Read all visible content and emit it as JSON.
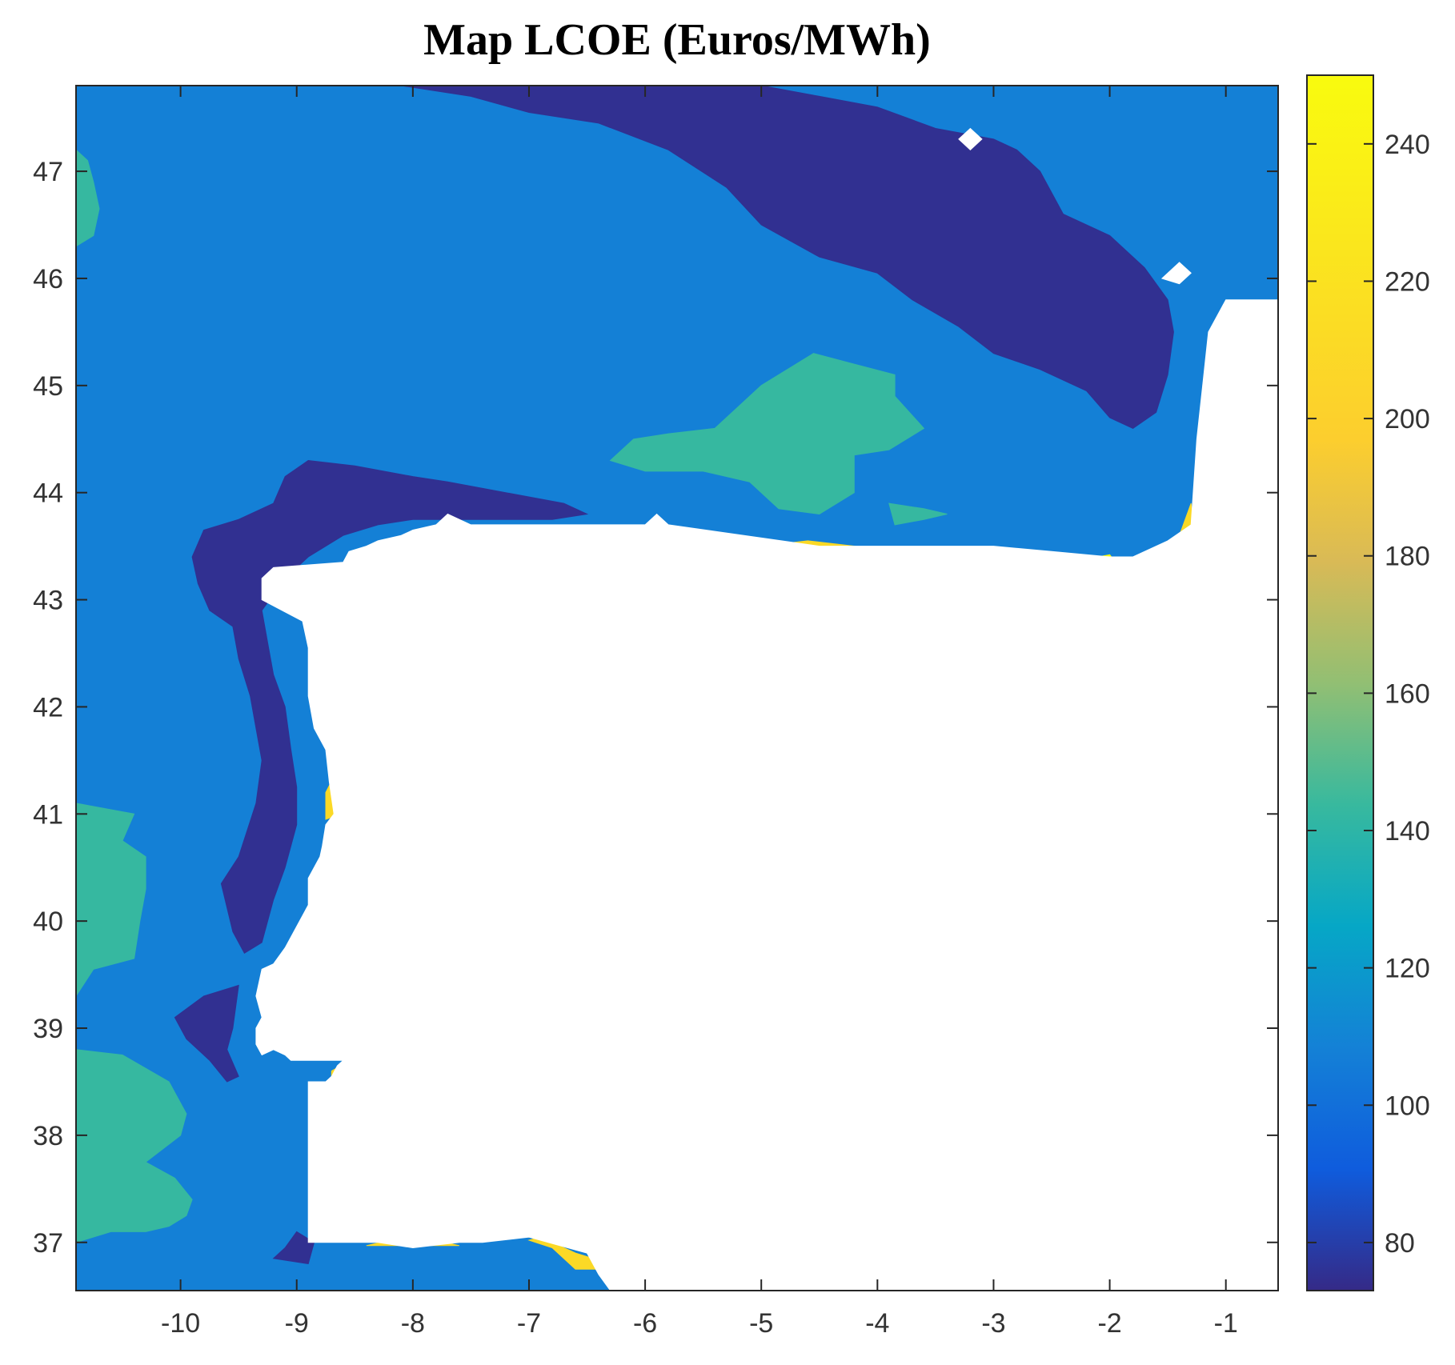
{
  "chart_data": {
    "type": "heatmap",
    "title": "Map LCOE (Euros/MWh)",
    "xlabel": "",
    "ylabel": "",
    "xlim": [
      -10.9,
      -0.55
    ],
    "ylim": [
      36.55,
      47.8
    ],
    "xticks": [
      -10,
      -9,
      -8,
      -7,
      -6,
      -5,
      -4,
      -3,
      -2,
      -1
    ],
    "yticks": [
      37,
      38,
      39,
      40,
      41,
      42,
      43,
      44,
      45,
      46,
      47
    ],
    "colorbar": {
      "range": [
        73,
        250
      ],
      "ticks": [
        80,
        100,
        120,
        140,
        160,
        180,
        200,
        220,
        240
      ],
      "colormap": "parula"
    },
    "land_mask": [
      [
        [
          -8.9,
          37.0
        ],
        [
          -8.9,
          38.5
        ],
        [
          -8.75,
          38.5
        ],
        [
          -8.7,
          38.55
        ],
        [
          -8.65,
          38.65
        ],
        [
          -8.6,
          38.7
        ],
        [
          -9.05,
          38.7
        ],
        [
          -9.1,
          38.75
        ],
        [
          -9.2,
          38.8
        ],
        [
          -9.3,
          38.75
        ],
        [
          -9.35,
          38.85
        ],
        [
          -9.35,
          39.0
        ],
        [
          -9.3,
          39.1
        ],
        [
          -9.35,
          39.3
        ],
        [
          -9.3,
          39.55
        ],
        [
          -9.2,
          39.6
        ],
        [
          -9.1,
          39.75
        ],
        [
          -9.0,
          39.95
        ],
        [
          -8.9,
          40.15
        ],
        [
          -8.9,
          40.4
        ],
        [
          -8.8,
          40.6
        ],
        [
          -8.78,
          40.7
        ],
        [
          -8.75,
          40.9
        ],
        [
          -8.68,
          41.0
        ],
        [
          -8.7,
          41.15
        ],
        [
          -8.72,
          41.3
        ],
        [
          -8.75,
          41.6
        ],
        [
          -8.85,
          41.8
        ],
        [
          -8.9,
          42.1
        ],
        [
          -8.9,
          42.4
        ],
        [
          -8.9,
          42.55
        ],
        [
          -8.95,
          42.8
        ],
        [
          -9.3,
          43.0
        ],
        [
          -9.3,
          43.2
        ],
        [
          -9.2,
          43.3
        ],
        [
          -8.6,
          43.35
        ],
        [
          -8.55,
          43.45
        ],
        [
          -8.4,
          43.5
        ],
        [
          -8.3,
          43.55
        ],
        [
          -8.1,
          43.6
        ],
        [
          -8.0,
          43.65
        ],
        [
          -7.8,
          43.7
        ],
        [
          -7.7,
          43.8
        ],
        [
          -7.6,
          43.75
        ],
        [
          -7.5,
          43.7
        ],
        [
          -6.0,
          43.7
        ],
        [
          -5.9,
          43.8
        ],
        [
          -5.8,
          43.7
        ],
        [
          -4.5,
          43.5
        ],
        [
          -3.0,
          43.5
        ],
        [
          -2.5,
          43.45
        ],
        [
          -2.0,
          43.4
        ],
        [
          -1.8,
          43.4
        ],
        [
          -1.5,
          43.55
        ],
        [
          -1.3,
          43.7
        ],
        [
          -1.25,
          44.5
        ],
        [
          -1.2,
          45.0
        ],
        [
          -1.15,
          45.5
        ],
        [
          -1.0,
          45.8
        ],
        [
          -0.55,
          45.8
        ],
        [
          -0.55,
          36.55
        ],
        [
          -6.3,
          36.55
        ],
        [
          -6.4,
          36.7
        ],
        [
          -6.5,
          36.9
        ],
        [
          -7.0,
          37.05
        ],
        [
          -7.4,
          37.0
        ],
        [
          -7.6,
          37.0
        ],
        [
          -8.0,
          36.95
        ],
        [
          -8.3,
          37.0
        ],
        [
          -8.6,
          37.0
        ]
      ],
      [
        [
          -1.55,
          46.0
        ],
        [
          -1.4,
          46.15
        ],
        [
          -1.3,
          46.05
        ],
        [
          -1.4,
          45.95
        ]
      ],
      [
        [
          -3.3,
          47.3
        ],
        [
          -3.2,
          47.4
        ],
        [
          -3.1,
          47.3
        ],
        [
          -3.2,
          47.2
        ]
      ]
    ],
    "regions": [
      {
        "value": 143,
        "polygon": [
          [
            -10.9,
            37.0
          ],
          [
            -10.6,
            37.1
          ],
          [
            -10.3,
            37.1
          ],
          [
            -10.1,
            37.15
          ],
          [
            -9.95,
            37.25
          ],
          [
            -9.9,
            37.4
          ],
          [
            -10.05,
            37.6
          ],
          [
            -10.3,
            37.75
          ],
          [
            -10.0,
            38.0
          ],
          [
            -9.95,
            38.2
          ],
          [
            -10.1,
            38.5
          ],
          [
            -10.5,
            38.75
          ],
          [
            -10.9,
            38.8
          ]
        ]
      },
      {
        "value": 143,
        "polygon": [
          [
            -10.9,
            39.3
          ],
          [
            -10.75,
            39.55
          ],
          [
            -10.4,
            39.65
          ],
          [
            -10.35,
            40.0
          ],
          [
            -10.3,
            40.3
          ],
          [
            -10.3,
            40.6
          ],
          [
            -10.5,
            40.75
          ],
          [
            -10.4,
            41.0
          ],
          [
            -10.65,
            41.05
          ],
          [
            -10.9,
            41.1
          ]
        ]
      },
      {
        "value": 143,
        "polygon": [
          [
            -10.9,
            46.3
          ],
          [
            -10.75,
            46.4
          ],
          [
            -10.7,
            46.65
          ],
          [
            -10.75,
            46.9
          ],
          [
            -10.8,
            47.1
          ],
          [
            -10.9,
            47.2
          ]
        ]
      },
      {
        "value": 143,
        "polygon": [
          [
            -5.4,
            44.6
          ],
          [
            -5.0,
            45.0
          ],
          [
            -4.55,
            45.3
          ],
          [
            -4.2,
            45.2
          ],
          [
            -3.85,
            45.1
          ],
          [
            -3.85,
            44.9
          ],
          [
            -3.6,
            44.6
          ],
          [
            -3.9,
            44.4
          ],
          [
            -4.2,
            44.35
          ],
          [
            -4.2,
            44.0
          ],
          [
            -4.5,
            43.8
          ],
          [
            -4.85,
            43.85
          ],
          [
            -5.1,
            44.1
          ],
          [
            -5.5,
            44.2
          ],
          [
            -6.0,
            44.2
          ],
          [
            -6.3,
            44.3
          ],
          [
            -6.1,
            44.5
          ],
          [
            -5.8,
            44.55
          ]
        ]
      },
      {
        "value": 143,
        "polygon": [
          [
            -3.9,
            43.9
          ],
          [
            -3.6,
            43.85
          ],
          [
            -3.4,
            43.8
          ],
          [
            -3.6,
            43.75
          ],
          [
            -3.85,
            43.7
          ]
        ]
      },
      {
        "value": 75,
        "polygon": [
          [
            -8.1,
            47.8
          ],
          [
            -7.5,
            47.7
          ],
          [
            -7.0,
            47.55
          ],
          [
            -6.4,
            47.45
          ],
          [
            -5.8,
            47.2
          ],
          [
            -5.3,
            46.85
          ],
          [
            -5.0,
            46.5
          ],
          [
            -4.5,
            46.2
          ],
          [
            -4.0,
            46.05
          ],
          [
            -3.7,
            45.8
          ],
          [
            -3.3,
            45.55
          ],
          [
            -3.0,
            45.3
          ],
          [
            -2.6,
            45.15
          ],
          [
            -2.2,
            44.95
          ],
          [
            -2.0,
            44.7
          ],
          [
            -1.8,
            44.6
          ],
          [
            -1.6,
            44.75
          ],
          [
            -1.5,
            45.1
          ],
          [
            -1.45,
            45.5
          ],
          [
            -1.5,
            45.8
          ],
          [
            -1.7,
            46.1
          ],
          [
            -2.0,
            46.4
          ],
          [
            -2.4,
            46.6
          ],
          [
            -2.6,
            47.0
          ],
          [
            -2.8,
            47.2
          ],
          [
            -3.0,
            47.3
          ],
          [
            -3.5,
            47.4
          ],
          [
            -4.0,
            47.6
          ],
          [
            -4.5,
            47.7
          ],
          [
            -5.0,
            47.8
          ]
        ]
      },
      {
        "value": 75,
        "polygon": [
          [
            -9.9,
            43.4
          ],
          [
            -9.85,
            43.15
          ],
          [
            -9.75,
            42.9
          ],
          [
            -9.55,
            42.75
          ],
          [
            -9.5,
            42.45
          ],
          [
            -9.4,
            42.1
          ],
          [
            -9.35,
            41.8
          ],
          [
            -9.3,
            41.5
          ],
          [
            -9.35,
            41.1
          ],
          [
            -9.5,
            40.6
          ],
          [
            -9.65,
            40.35
          ],
          [
            -9.55,
            39.9
          ],
          [
            -9.45,
            39.7
          ],
          [
            -9.3,
            39.8
          ],
          [
            -9.2,
            40.2
          ],
          [
            -9.1,
            40.5
          ],
          [
            -9.0,
            40.9
          ],
          [
            -9.0,
            41.25
          ],
          [
            -9.05,
            41.6
          ],
          [
            -9.1,
            42.0
          ],
          [
            -9.2,
            42.3
          ],
          [
            -9.25,
            42.6
          ],
          [
            -9.3,
            42.9
          ],
          [
            -9.1,
            43.2
          ],
          [
            -8.9,
            43.4
          ],
          [
            -8.6,
            43.6
          ],
          [
            -8.3,
            43.7
          ],
          [
            -8.0,
            43.75
          ],
          [
            -7.5,
            43.75
          ],
          [
            -6.8,
            43.75
          ],
          [
            -6.5,
            43.8
          ],
          [
            -6.7,
            43.9
          ],
          [
            -7.2,
            44.0
          ],
          [
            -7.7,
            44.1
          ],
          [
            -8.0,
            44.15
          ],
          [
            -8.5,
            44.25
          ],
          [
            -8.9,
            44.3
          ],
          [
            -9.1,
            44.15
          ],
          [
            -9.2,
            43.9
          ],
          [
            -9.5,
            43.75
          ],
          [
            -9.8,
            43.65
          ]
        ]
      },
      {
        "value": 75,
        "polygon": [
          [
            -10.05,
            39.1
          ],
          [
            -9.95,
            38.9
          ],
          [
            -9.75,
            38.7
          ],
          [
            -9.6,
            38.5
          ],
          [
            -9.5,
            38.55
          ],
          [
            -9.6,
            38.8
          ],
          [
            -9.55,
            39.0
          ],
          [
            -9.5,
            39.4
          ],
          [
            -9.8,
            39.3
          ]
        ]
      },
      {
        "value": 75,
        "polygon": [
          [
            -9.1,
            36.95
          ],
          [
            -9.0,
            37.1
          ],
          [
            -8.85,
            37.0
          ],
          [
            -8.9,
            36.8
          ],
          [
            -9.2,
            36.85
          ]
        ]
      },
      {
        "value": 210,
        "polygon": [
          [
            -8.75,
            40.95
          ],
          [
            -8.62,
            41.0
          ],
          [
            -8.6,
            41.2
          ],
          [
            -8.68,
            41.35
          ],
          [
            -8.75,
            41.2
          ]
        ]
      },
      {
        "value": 210,
        "polygon": [
          [
            -1.75,
            43.4
          ],
          [
            -1.4,
            43.6
          ],
          [
            -1.3,
            43.9
          ],
          [
            -1.28,
            43.7
          ],
          [
            -1.4,
            43.5
          ],
          [
            -1.6,
            43.42
          ]
        ]
      },
      {
        "value": 210,
        "polygon": [
          [
            -1.2,
            45.0
          ],
          [
            -1.1,
            45.3
          ],
          [
            -1.12,
            45.1
          ]
        ]
      },
      {
        "value": 210,
        "polygon": [
          [
            -6.6,
            36.75
          ],
          [
            -6.4,
            36.75
          ],
          [
            -6.45,
            36.85
          ],
          [
            -6.6,
            36.9
          ],
          [
            -6.9,
            37.05
          ],
          [
            -7.0,
            37.02
          ],
          [
            -6.8,
            36.95
          ]
        ]
      },
      {
        "value": 210,
        "polygon": [
          [
            -8.7,
            38.5
          ],
          [
            -8.6,
            38.5
          ],
          [
            -8.62,
            38.65
          ],
          [
            -8.7,
            38.6
          ]
        ]
      },
      {
        "value": 210,
        "polygon": [
          [
            -5.0,
            43.5
          ],
          [
            -4.3,
            43.45
          ],
          [
            -4.2,
            43.5
          ],
          [
            -4.6,
            43.55
          ]
        ]
      },
      {
        "value": 210,
        "polygon": [
          [
            -8.4,
            36.97
          ],
          [
            -7.6,
            36.97
          ],
          [
            -7.8,
            37.02
          ],
          [
            -8.2,
            37.02
          ]
        ]
      },
      {
        "value": 250,
        "polygon": [
          [
            -0.85,
            45.55
          ],
          [
            -0.75,
            45.45
          ],
          [
            -0.75,
            45.35
          ]
        ]
      },
      {
        "value": 250,
        "polygon": [
          [
            -8.4,
            43.5
          ],
          [
            -8.2,
            43.42
          ],
          [
            -8.3,
            43.5
          ]
        ]
      },
      {
        "value": 250,
        "polygon": [
          [
            -7.05,
            37.05
          ],
          [
            -6.95,
            37.15
          ],
          [
            -6.9,
            37.05
          ]
        ]
      },
      {
        "value": 250,
        "polygon": [
          [
            -2.1,
            43.4
          ],
          [
            -1.95,
            43.35
          ],
          [
            -2.0,
            43.42
          ]
        ]
      }
    ]
  }
}
